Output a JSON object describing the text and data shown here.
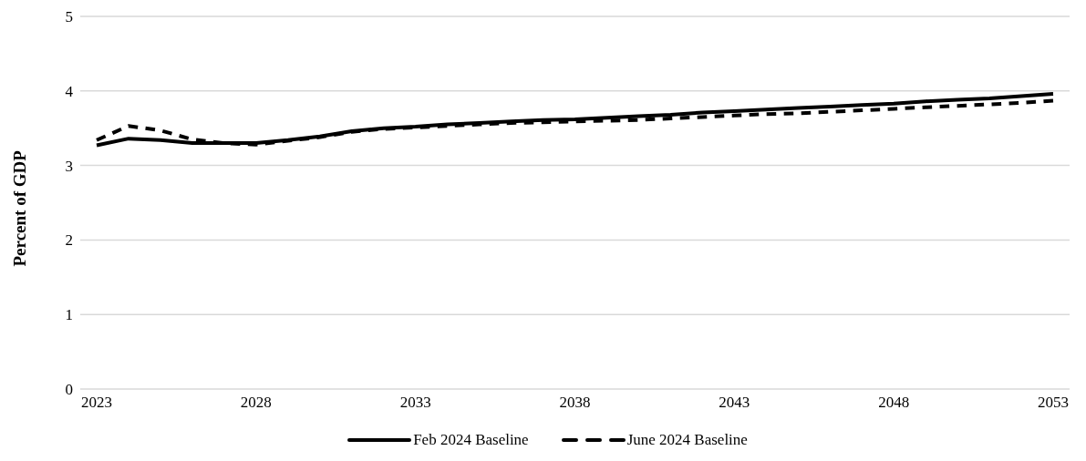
{
  "chart_data": {
    "type": "line",
    "ylabel": "Percent of GDP",
    "categories": [
      "2023",
      null,
      null,
      null,
      null,
      "2028",
      null,
      null,
      null,
      null,
      "2033",
      null,
      null,
      null,
      null,
      "2038",
      null,
      null,
      null,
      null,
      "2043",
      null,
      null,
      null,
      null,
      "2048",
      null,
      null,
      null,
      null,
      "2053"
    ],
    "series": [
      {
        "name": "Feb 2024 Baseline",
        "color": "#000000",
        "line_style": "solid",
        "values": [
          3.27,
          3.36,
          3.34,
          3.3,
          3.3,
          3.3,
          3.34,
          3.39,
          3.46,
          3.5,
          3.52,
          3.55,
          3.57,
          3.59,
          3.61,
          3.62,
          3.64,
          3.66,
          3.68,
          3.71,
          3.73,
          3.75,
          3.77,
          3.79,
          3.81,
          3.83,
          3.86,
          3.88,
          3.9,
          3.93,
          3.96
        ]
      },
      {
        "name": "June 2024 Baseline",
        "color": "#000000",
        "line_style": "dashed",
        "values": [
          3.34,
          3.53,
          3.47,
          3.35,
          3.3,
          3.28,
          3.33,
          3.38,
          3.45,
          3.49,
          3.51,
          3.53,
          3.55,
          3.57,
          3.58,
          3.59,
          3.6,
          3.61,
          3.63,
          3.65,
          3.67,
          3.69,
          3.7,
          3.72,
          3.74,
          3.76,
          3.78,
          3.8,
          3.82,
          3.84,
          3.87
        ]
      }
    ],
    "ylim": [
      0,
      5
    ],
    "yticks": [
      0,
      1,
      2,
      3,
      4,
      5
    ],
    "grid": "y",
    "legend": "bottom",
    "marker": "none"
  }
}
